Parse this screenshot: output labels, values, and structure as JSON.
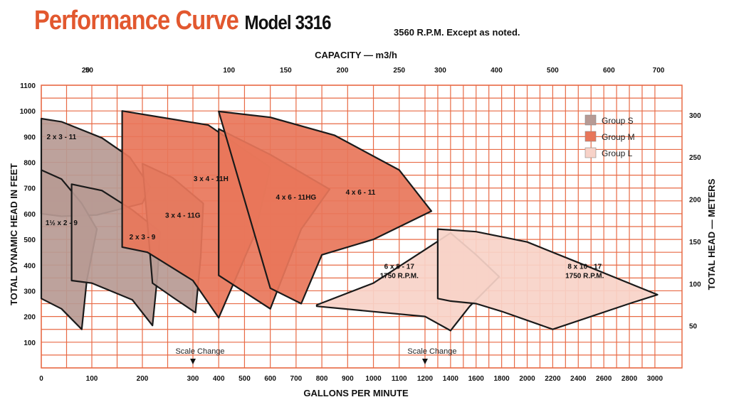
{
  "header": {
    "title": "Performance Curve",
    "model": "Model 3316",
    "subtitle": "3560 R.P.M. Except as noted."
  },
  "colors": {
    "grid": "#e86a45",
    "title": "#e2582f",
    "group_s": "#b79a94",
    "group_m": "#e8765a",
    "group_l": "#f7d2c8",
    "outline": "#1a1a1a"
  },
  "chart_data": {
    "type": "area",
    "title": "Performance Curve",
    "xlabel": "GALLONS PER MINUTE",
    "ylabel_left": "TOTAL DYNAMIC HEAD IN FEET",
    "ylabel_right": "TOTAL HEAD — METERS",
    "xlabel_top": "CAPACITY — m3/h",
    "x_axis_note": "Scale Change at 300 and 1200 GPM",
    "ylim": [
      0,
      1100
    ],
    "gpm_ticks": [
      0,
      100,
      200,
      300,
      400,
      500,
      600,
      700,
      800,
      900,
      1000,
      1100,
      1200,
      1400,
      1600,
      1800,
      2000,
      2200,
      2400,
      2600,
      2800,
      3000
    ],
    "head_ft_ticks": [
      100,
      200,
      300,
      400,
      500,
      600,
      700,
      800,
      900,
      1000,
      1100
    ],
    "head_m_ticks": [
      50,
      100,
      150,
      200,
      250,
      300
    ],
    "capacity_ticks": [
      50,
      20,
      100,
      150,
      200,
      250,
      300,
      400,
      500,
      600,
      700
    ],
    "scale_change_label": "Scale Change",
    "legend": [
      {
        "name": "Group S",
        "color": "#b79a94"
      },
      {
        "name": "Group M",
        "color": "#e8765a"
      },
      {
        "name": "Group L",
        "color": "#f7d2c8"
      }
    ],
    "series": [
      {
        "name": "2 x 3 - 11",
        "group": "S",
        "label_at": [
          40,
          890
        ],
        "outline": [
          [
            0,
            970
          ],
          [
            40,
            958
          ],
          [
            120,
            895
          ],
          [
            175,
            820
          ],
          [
            215,
            705
          ],
          [
            200,
            640
          ],
          [
            110,
            595
          ],
          [
            40,
            590
          ],
          [
            0,
            600
          ]
        ]
      },
      {
        "name": "1½ x 2 - 9",
        "group": "S",
        "label_at": [
          40,
          555
        ],
        "outline": [
          [
            0,
            770
          ],
          [
            40,
            735
          ],
          [
            80,
            640
          ],
          [
            110,
            540
          ],
          [
            90,
            340
          ],
          [
            80,
            150
          ],
          [
            40,
            230
          ],
          [
            0,
            270
          ]
        ]
      },
      {
        "name": "2 x 3 - 9",
        "group": "S",
        "label_at": [
          200,
          500
        ],
        "outline": [
          [
            60,
            715
          ],
          [
            120,
            690
          ],
          [
            180,
            615
          ],
          [
            235,
            530
          ],
          [
            230,
            360
          ],
          [
            220,
            165
          ],
          [
            180,
            265
          ],
          [
            100,
            330
          ],
          [
            60,
            340
          ]
        ]
      },
      {
        "name": "3 x 4 - 11G",
        "group": "S",
        "label_at": [
          280,
          585
        ],
        "outline": [
          [
            200,
            795
          ],
          [
            260,
            740
          ],
          [
            340,
            640
          ],
          [
            330,
            430
          ],
          [
            310,
            215
          ],
          [
            260,
            275
          ],
          [
            220,
            330
          ]
        ]
      },
      {
        "name": "3 x 4 - 11H",
        "group": "M",
        "label_at": [
          370,
          727
        ],
        "outline": [
          [
            160,
            1000
          ],
          [
            360,
            945
          ],
          [
            600,
            780
          ],
          [
            540,
            520
          ],
          [
            400,
            195
          ],
          [
            300,
            340
          ],
          [
            210,
            450
          ],
          [
            160,
            470
          ]
        ]
      },
      {
        "name": "4 x 6 - 11HG",
        "group": "M",
        "label_at": [
          700,
          655
        ],
        "outline": [
          [
            400,
            930
          ],
          [
            600,
            830
          ],
          [
            830,
            695
          ],
          [
            720,
            540
          ],
          [
            600,
            230
          ],
          [
            400,
            360
          ]
        ]
      },
      {
        "name": "4 x 6 - 11",
        "group": "M",
        "label_at": [
          950,
          675
        ],
        "outline": [
          [
            400,
            998
          ],
          [
            600,
            975
          ],
          [
            850,
            905
          ],
          [
            1100,
            770
          ],
          [
            1250,
            610
          ],
          [
            1000,
            500
          ],
          [
            800,
            440
          ],
          [
            720,
            250
          ],
          [
            600,
            310
          ]
        ]
      },
      {
        "name": "6 x 8 - 17",
        "subtitle": "1750 R.P.M.",
        "group": "L",
        "label_at": [
          1100,
          385
        ],
        "outline": [
          [
            780,
            245
          ],
          [
            1000,
            330
          ],
          [
            1200,
            460
          ],
          [
            1400,
            525
          ],
          [
            1600,
            440
          ],
          [
            1780,
            355
          ],
          [
            1550,
            240
          ],
          [
            1400,
            145
          ],
          [
            1200,
            200
          ],
          [
            780,
            240
          ]
        ]
      },
      {
        "name": "8 x 10 - 17",
        "subtitle": "1750 R.P.M.",
        "group": "L",
        "label_at": [
          2450,
          385
        ],
        "outline": [
          [
            1300,
            540
          ],
          [
            1600,
            530
          ],
          [
            2000,
            490
          ],
          [
            2400,
            410
          ],
          [
            3020,
            285
          ],
          [
            2800,
            250
          ],
          [
            2200,
            150
          ],
          [
            1800,
            220
          ],
          [
            1600,
            250
          ],
          [
            1400,
            260
          ],
          [
            1300,
            270
          ]
        ]
      }
    ]
  }
}
